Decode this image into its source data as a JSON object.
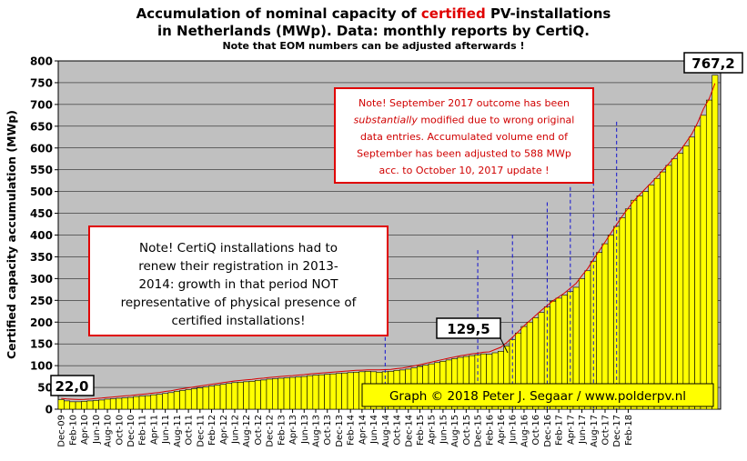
{
  "chart_data": {
    "type": "bar",
    "title_line1_pre": "Accumulation  of nominal capacity of ",
    "title_highlight": "certified",
    "title_line1_post": " PV-installations",
    "title_line2": "in Netherlands (MWp). Data: monthly  reports by CertiQ.",
    "subtitle": "Note that EOM numbers can be adjusted afterwards  !",
    "ylabel": "Certified  capacity accumulation  (MWp)",
    "xlabel": "",
    "ylim": [
      0,
      800
    ],
    "yticks": [
      0,
      50,
      100,
      150,
      200,
      250,
      300,
      350,
      400,
      450,
      500,
      550,
      600,
      650,
      700,
      750,
      800
    ],
    "x_tick_labels": [
      "Dec-09",
      "Feb-10",
      "Apr-10",
      "Jun-10",
      "Aug-10",
      "Oct-10",
      "Dec-10",
      "Feb-11",
      "Apr-11",
      "Jun-11",
      "Aug-11",
      "Oct-11",
      "Dec-11",
      "Feb-12",
      "Apr-12",
      "Jun-12",
      "Aug-12",
      "Oct-12",
      "Dec-12",
      "Feb-13",
      "Apr-13",
      "Jun-13",
      "Aug-13",
      "Oct-13",
      "Dec-13",
      "Feb-14",
      "Apr-14",
      "Jun-14",
      "Aug-14",
      "Oct-14",
      "Dec-14",
      "Feb-15",
      "Apr-15",
      "Jun-15",
      "Aug-15",
      "Oct-15",
      "Dec-15",
      "Feb-16",
      "Apr-16",
      "Jun-16",
      "Aug-16",
      "Oct-16",
      "Dec-16",
      "Feb-17",
      "Apr-17",
      "Jun-17",
      "Aug-17",
      "Oct-17",
      "Dec-17",
      "Feb-18"
    ],
    "values": [
      22.0,
      19,
      17,
      17,
      18,
      19,
      20,
      21,
      23,
      24,
      25,
      26,
      27,
      29,
      30,
      31,
      33,
      34,
      36,
      38,
      41,
      43,
      45,
      47,
      49,
      51,
      53,
      55,
      57,
      59,
      61,
      62,
      63,
      64,
      66,
      67,
      69,
      70,
      71,
      72,
      73,
      74,
      75,
      77,
      78,
      79,
      80,
      81,
      82,
      83,
      84,
      85,
      86,
      87,
      86,
      85,
      86,
      87,
      89,
      90,
      92,
      95,
      98,
      101,
      104,
      107,
      110,
      113,
      116,
      119,
      121,
      123,
      125,
      127,
      126,
      129.5,
      133,
      145,
      160,
      175,
      190,
      200,
      210,
      222,
      235,
      248,
      255,
      262,
      270,
      280,
      300,
      318,
      340,
      360,
      380,
      400,
      420,
      440,
      460,
      480,
      490,
      500,
      515,
      530,
      545,
      560,
      575,
      588,
      605,
      625,
      650,
      675,
      710,
      767.2
    ],
    "grid": true,
    "series_color": "#ffff00",
    "bar_edge_color": "#000000",
    "plot_background": "#c0c0c0",
    "trend_color": "#d80000",
    "label_start": "22,0",
    "label_mid": "129,5",
    "label_end": "767,2",
    "note1_lines": [
      "Note! CertiQ installations had to",
      "renew their registration in 2013-",
      "2014:  growth in that period NOT",
      "representative of physical presence of",
      "certified installations!"
    ],
    "note2_lines": [
      "Note! September 2017 outcome has been",
      "substantially modified due to wrong original",
      "data entries. Accumulated volume end of",
      "September has been adjusted to 588 MWp",
      "acc. to October 10, 2017 update !"
    ],
    "note2_italic_word": "substantially",
    "credit": "Graph © 2018 Peter J. Segaar / www.polderpv.nl",
    "dashed_marker_months": [
      "Aug-14",
      "Dec-15",
      "Jun-16",
      "Dec-16",
      "Apr-17",
      "Aug-17",
      "Dec-17"
    ]
  }
}
